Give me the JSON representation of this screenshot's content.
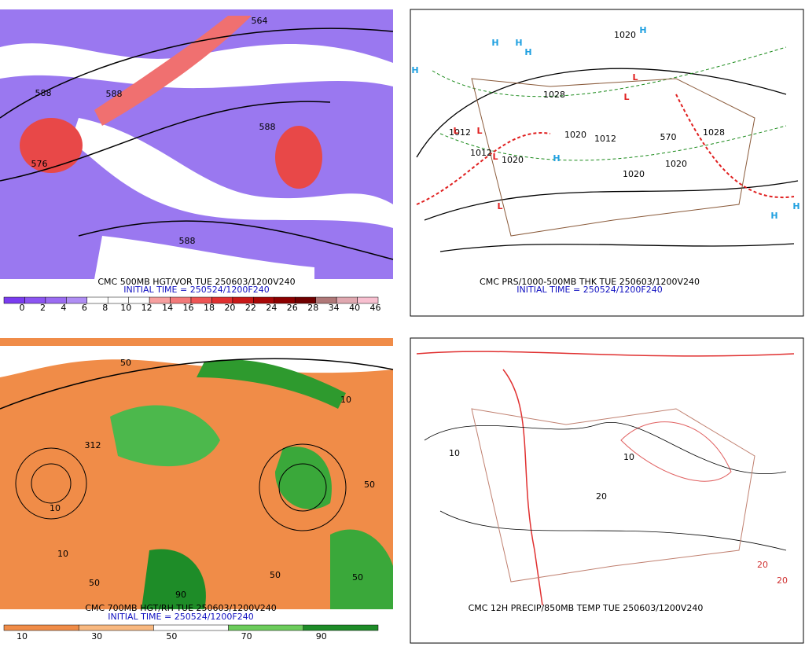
{
  "panels": [
    {
      "caption": "CMC 500MB HGT/VOR TUE 250603/1200V240",
      "initial_time": "INITIAL TIME = 250524/1200F240",
      "colorbar": {
        "labels": [
          "0",
          "2",
          "4",
          "6",
          "8",
          "10",
          "12",
          "14",
          "16",
          "18",
          "20",
          "22",
          "24",
          "26",
          "28",
          "34",
          "40",
          "46"
        ],
        "colors": [
          "#7a3cf0",
          "#8c55f2",
          "#9b6cf2",
          "#b08ef4",
          "#ffffff",
          "#ffffff",
          "#ffffff",
          "#f7a0a0",
          "#f27a7a",
          "#ee5555",
          "#e03030",
          "#c81818",
          "#a80808",
          "#8c0000",
          "#700000",
          "#b07878",
          "#e0a8b0",
          "#f8c0d0"
        ]
      },
      "labels": [
        "564",
        "588",
        "576",
        "588",
        "588",
        "588"
      ],
      "symbols": []
    },
    {
      "caption": "CMC PRS/1000-500MB THK TUE 250603/1200V240",
      "initial_time": "INITIAL TIME = 250524/1200F240",
      "labels": [
        "1020",
        "1028",
        "1012",
        "1012",
        "1020",
        "1012",
        "1020",
        "1028",
        "1020",
        "570",
        "1020"
      ],
      "symbols": [
        "H",
        "H",
        "H",
        "H",
        "H",
        "H",
        "H",
        "H",
        "L",
        "L",
        "L",
        "L",
        "L",
        "L"
      ]
    },
    {
      "caption": "CMC 700MB HGT/RH TUE 250603/1200V240",
      "initial_time": "INITIAL TIME = 250524/1200F240",
      "colorbar": {
        "labels": [
          "10",
          "30",
          "50",
          "70",
          "90"
        ],
        "colors": [
          "#f08c48",
          "#f8b880",
          "#ffffff",
          "#6ccc5c",
          "#1e8c28"
        ]
      },
      "labels": [
        "50",
        "312",
        "10",
        "50",
        "10",
        "90",
        "50",
        "10",
        "50",
        "50"
      ],
      "symbols": []
    },
    {
      "caption": "CMC 12H PRECIP/850MB TEMP TUE 250603/1200V240",
      "labels": [
        "10",
        "20",
        "10",
        "20",
        "20"
      ],
      "symbols": []
    }
  ]
}
